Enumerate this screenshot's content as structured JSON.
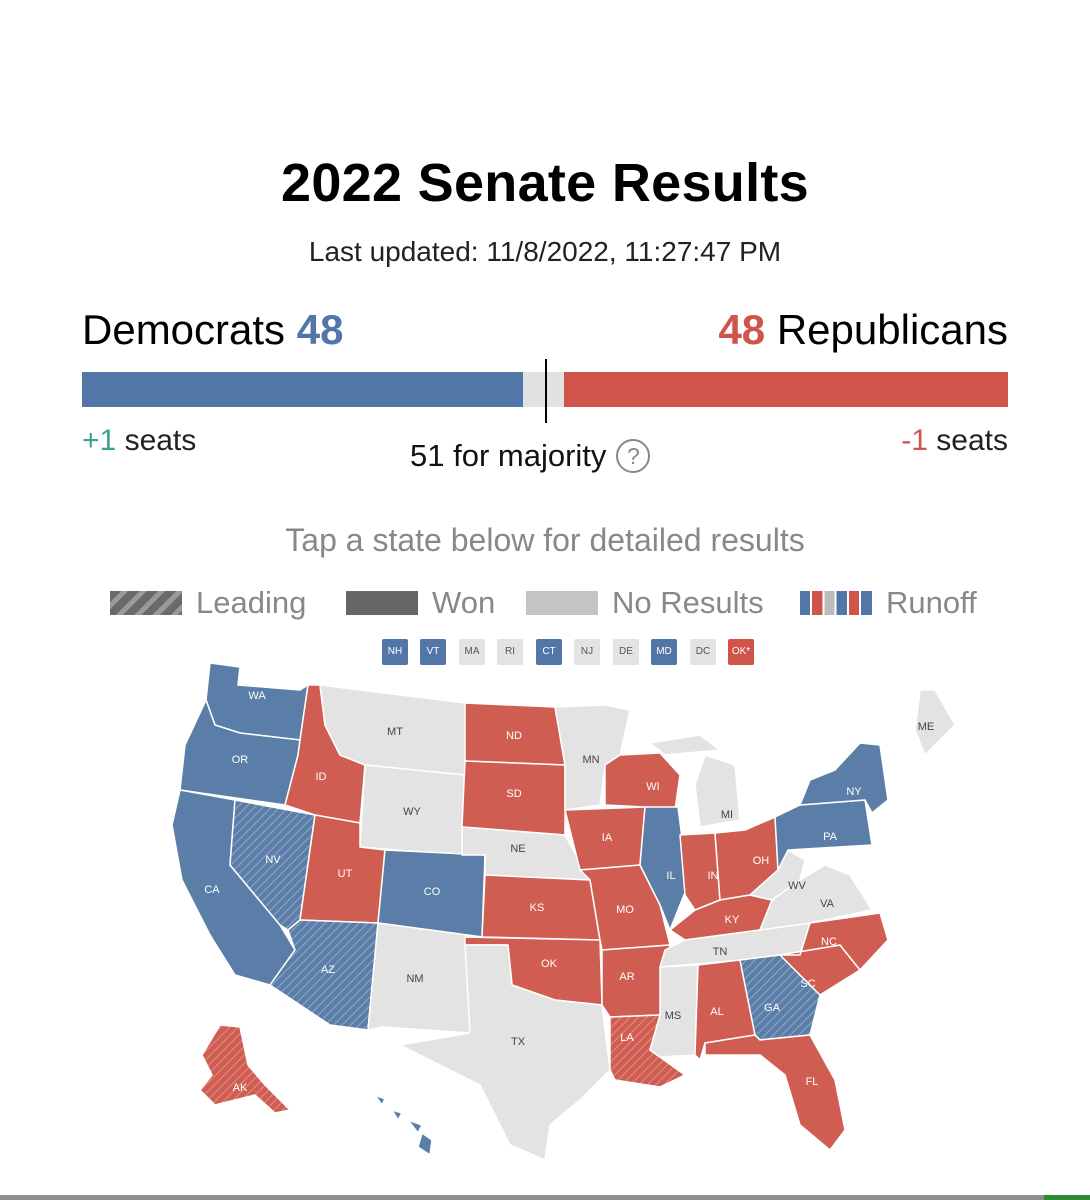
{
  "title": "2022 Senate Results",
  "updated": "Last updated: 11/8/2022, 11:27:47 PM",
  "dem": {
    "name": "Democrats",
    "seats": "48",
    "change": "+1",
    "change_label": "seats",
    "color": "#5276a7"
  },
  "rep": {
    "name": "Republicans",
    "seats": "48",
    "change": "-1",
    "change_label": "seats",
    "color": "#d0544a"
  },
  "majority": {
    "text": "51 for majority",
    "help": "?"
  },
  "bar": {
    "total": 100,
    "dem": 48,
    "rep": 48
  },
  "instructions": "Tap a state below for detailed results",
  "legend": [
    {
      "label": "Leading",
      "kind": "leading"
    },
    {
      "label": "Won",
      "kind": "won"
    },
    {
      "label": "No Results",
      "kind": "none"
    },
    {
      "label": "Runoff",
      "kind": "runoff"
    }
  ],
  "small_states": [
    {
      "abbr": "NH",
      "status": "dem"
    },
    {
      "abbr": "VT",
      "status": "dem"
    },
    {
      "abbr": "MA",
      "status": "none"
    },
    {
      "abbr": "RI",
      "status": "none"
    },
    {
      "abbr": "CT",
      "status": "dem"
    },
    {
      "abbr": "NJ",
      "status": "none"
    },
    {
      "abbr": "DE",
      "status": "none"
    },
    {
      "abbr": "MD",
      "status": "dem"
    },
    {
      "abbr": "DC",
      "status": "none"
    },
    {
      "abbr": "OK*",
      "status": "rep"
    }
  ],
  "states": [
    {
      "abbr": "WA",
      "status": "dem"
    },
    {
      "abbr": "OR",
      "status": "dem"
    },
    {
      "abbr": "CA",
      "status": "dem"
    },
    {
      "abbr": "NV",
      "status": "lead-dem"
    },
    {
      "abbr": "ID",
      "status": "rep"
    },
    {
      "abbr": "MT",
      "status": "none"
    },
    {
      "abbr": "WY",
      "status": "none"
    },
    {
      "abbr": "UT",
      "status": "rep"
    },
    {
      "abbr": "AZ",
      "status": "lead-dem"
    },
    {
      "abbr": "CO",
      "status": "dem"
    },
    {
      "abbr": "NM",
      "status": "none"
    },
    {
      "abbr": "ND",
      "status": "rep"
    },
    {
      "abbr": "SD",
      "status": "rep"
    },
    {
      "abbr": "NE",
      "status": "none"
    },
    {
      "abbr": "KS",
      "status": "rep"
    },
    {
      "abbr": "OK",
      "status": "rep"
    },
    {
      "abbr": "TX",
      "status": "none"
    },
    {
      "abbr": "MN",
      "status": "none"
    },
    {
      "abbr": "IA",
      "status": "rep"
    },
    {
      "abbr": "MO",
      "status": "rep"
    },
    {
      "abbr": "AR",
      "status": "rep"
    },
    {
      "abbr": "LA",
      "status": "lead-rep"
    },
    {
      "abbr": "WI",
      "status": "rep"
    },
    {
      "abbr": "IL",
      "status": "dem"
    },
    {
      "abbr": "MI",
      "status": "none"
    },
    {
      "abbr": "IN",
      "status": "rep"
    },
    {
      "abbr": "OH",
      "status": "rep"
    },
    {
      "abbr": "KY",
      "status": "rep"
    },
    {
      "abbr": "TN",
      "status": "none"
    },
    {
      "abbr": "MS",
      "status": "none"
    },
    {
      "abbr": "AL",
      "status": "rep"
    },
    {
      "abbr": "GA",
      "status": "lead-dem"
    },
    {
      "abbr": "FL",
      "status": "rep"
    },
    {
      "abbr": "SC",
      "status": "rep"
    },
    {
      "abbr": "NC",
      "status": "rep"
    },
    {
      "abbr": "VA",
      "status": "none"
    },
    {
      "abbr": "WV",
      "status": "none"
    },
    {
      "abbr": "PA",
      "status": "dem"
    },
    {
      "abbr": "NY",
      "status": "dem"
    },
    {
      "abbr": "ME",
      "status": "none"
    },
    {
      "abbr": "AK",
      "status": "lead-rep"
    },
    {
      "abbr": "HI",
      "status": "dem"
    }
  ]
}
